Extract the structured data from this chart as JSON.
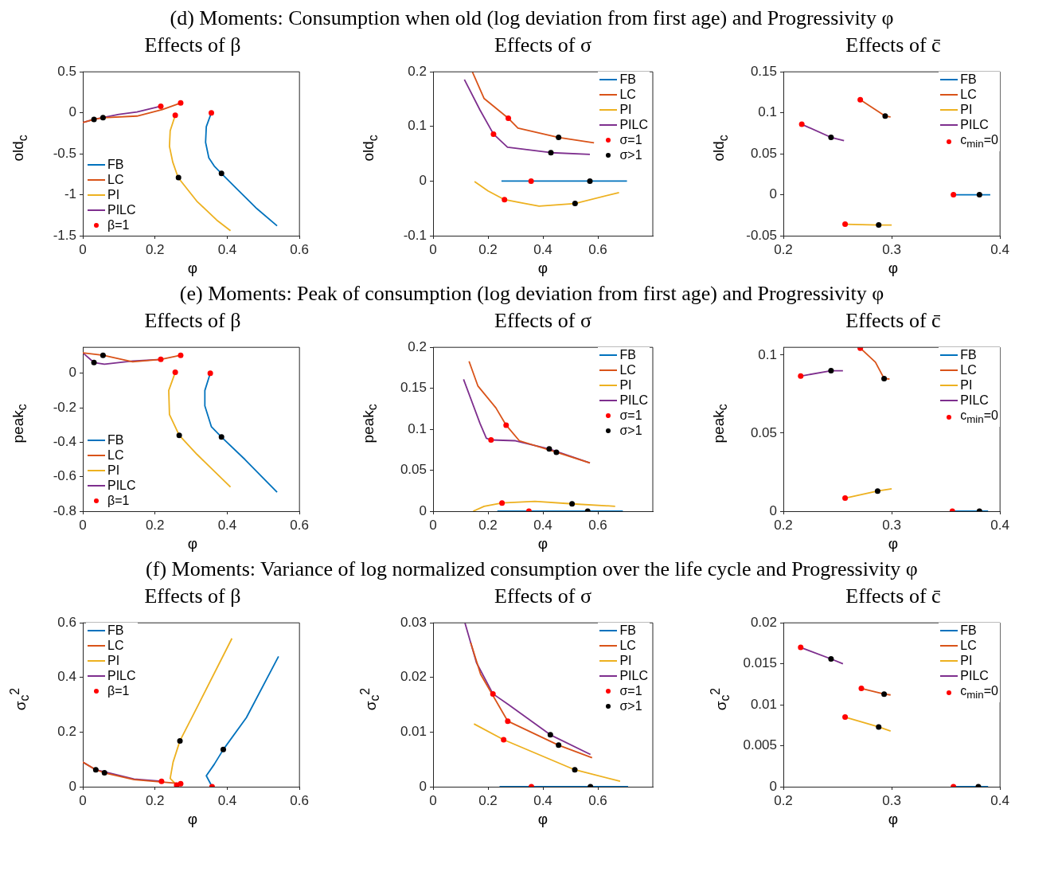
{
  "chart_data": [
    {
      "type": "line",
      "subtitle": "(d) Moments: Consumption when old (log deviation from first age) and Progressivity φ",
      "title": "Effects of β",
      "xlabel": "φ",
      "ylabel": "old$_{c}$",
      "xlim": [
        0,
        0.6
      ],
      "xticks": [
        0,
        0.2,
        0.4,
        0.6
      ],
      "ylim": [
        -1.5,
        0.5
      ],
      "yticks": [
        -1.5,
        -1,
        -0.5,
        0,
        0.5
      ],
      "grid": false,
      "legend": "bottom left",
      "series": [
        {
          "name": "FB",
          "color": "#0072bd",
          "x": [
            0.356,
            0.342,
            0.34,
            0.349,
            0.364,
            0.384,
            0.427,
            0.482,
            0.538
          ],
          "values": [
            0,
            -0.17,
            -0.36,
            -0.55,
            -0.65,
            -0.74,
            -0.93,
            -1.17,
            -1.38
          ]
        },
        {
          "name": "LC",
          "color": "#d95319",
          "x": [
            0,
            0.031,
            0.056,
            0.15,
            0.22,
            0.271
          ],
          "values": [
            -0.12,
            -0.08,
            -0.06,
            -0.04,
            0.04,
            0.12
          ]
        },
        {
          "name": "PI",
          "color": "#edb120",
          "x": [
            0.256,
            0.242,
            0.24,
            0.249,
            0.264,
            0.316,
            0.371,
            0.409
          ],
          "values": [
            -0.03,
            -0.22,
            -0.41,
            -0.6,
            -0.79,
            -1.08,
            -1.31,
            -1.44
          ]
        },
        {
          "name": "PILC",
          "color": "#7e2f8e",
          "x": [
            0,
            0.031,
            0.1,
            0.15,
            0.216
          ],
          "values": [
            -0.12,
            -0.08,
            -0.02,
            0.01,
            0.08
          ]
        },
        {
          "type": "scatter",
          "marker": "circle",
          "name": "β=1",
          "color": "#ff0000",
          "x": [
            0.356,
            0.256,
            0.271,
            0.216
          ],
          "values": [
            0,
            -0.03,
            0.12,
            0.08
          ]
        },
        {
          "type": "scatter",
          "marker": "circle",
          "color": "#000000",
          "x": [
            0.384,
            0.265,
            0.056,
            0.031
          ],
          "values": [
            -0.74,
            -0.79,
            -0.06,
            -0.08
          ]
        }
      ]
    },
    {
      "type": "line",
      "title": "Effects of σ",
      "xlabel": "φ",
      "ylabel": "old$_{c}$",
      "xlim": [
        0,
        0.8
      ],
      "xticks": [
        0,
        0.2,
        0.4,
        0.6
      ],
      "ylim": [
        -0.1,
        0.2
      ],
      "yticks": [
        -0.1,
        0,
        0.1,
        0.2
      ],
      "grid": false,
      "legend": "top right",
      "series": [
        {
          "name": "FB",
          "color": "#0072bd",
          "x": [
            0.249,
            0.706
          ],
          "values": [
            0,
            0
          ]
        },
        {
          "name": "LC",
          "color": "#d95319",
          "x": [
            0.143,
            0.186,
            0.274,
            0.309,
            0.457,
            0.586
          ],
          "values": [
            0.2,
            0.151,
            0.115,
            0.097,
            0.08,
            0.07
          ]
        },
        {
          "name": "PI",
          "color": "#edb120",
          "x": [
            0.151,
            0.2,
            0.26,
            0.386,
            0.517,
            0.677
          ],
          "values": [
            -0.001,
            -0.018,
            -0.034,
            -0.046,
            -0.041,
            -0.021
          ]
        },
        {
          "name": "PILC",
          "color": "#7e2f8e",
          "x": [
            0.114,
            0.171,
            0.22,
            0.271,
            0.429,
            0.571
          ],
          "values": [
            0.186,
            0.13,
            0.086,
            0.062,
            0.052,
            0.049
          ]
        },
        {
          "type": "scatter",
          "marker": "circle",
          "name": "σ=1",
          "color": "#ff0000",
          "x": [
            0.357,
            0.274,
            0.26,
            0.22
          ],
          "values": [
            0,
            0.115,
            -0.034,
            0.086
          ]
        },
        {
          "type": "scatter",
          "marker": "circle",
          "name": "σ>1",
          "color": "#000000",
          "x": [
            0.571,
            0.457,
            0.517,
            0.429
          ],
          "values": [
            0,
            0.08,
            -0.041,
            0.052
          ]
        }
      ]
    },
    {
      "type": "line",
      "title": "Effects of c̄",
      "xlabel": "φ",
      "ylabel": "old$_{c}$",
      "xlim": [
        0.2,
        0.4
      ],
      "xticks": [
        0.2,
        0.3,
        0.4
      ],
      "ylim": [
        -0.05,
        0.15
      ],
      "yticks": [
        -0.05,
        0,
        0.05,
        0.1,
        0.15
      ],
      "grid": false,
      "legend": "top right",
      "series": [
        {
          "name": "FB",
          "color": "#0072bd",
          "x": [
            0.357,
            0.381,
            0.391
          ],
          "values": [
            0,
            0,
            0
          ]
        },
        {
          "name": "LC",
          "color": "#d95319",
          "x": [
            0.271,
            0.294,
            0.299
          ],
          "values": [
            0.116,
            0.096,
            0.095
          ]
        },
        {
          "name": "PI",
          "color": "#edb120",
          "x": [
            0.257,
            0.288,
            0.3
          ],
          "values": [
            -0.036,
            -0.037,
            -0.037
          ]
        },
        {
          "name": "PILC",
          "color": "#7e2f8e",
          "x": [
            0.217,
            0.244,
            0.256
          ],
          "values": [
            0.086,
            0.07,
            0.066
          ]
        },
        {
          "type": "scatter",
          "marker": "circle",
          "name": "c$_{min}$=0",
          "color": "#ff0000",
          "x": [
            0.357,
            0.271,
            0.257,
            0.217
          ],
          "values": [
            0,
            0.116,
            -0.036,
            0.086
          ]
        },
        {
          "type": "scatter",
          "marker": "circle",
          "color": "#000000",
          "x": [
            0.381,
            0.294,
            0.288,
            0.244
          ],
          "values": [
            0,
            0.096,
            -0.037,
            0.07
          ]
        }
      ]
    },
    {
      "type": "line",
      "subtitle": "(e) Moments: Peak of consumption (log deviation from first age) and Progressivity φ",
      "title": "Effects of β",
      "xlabel": "φ",
      "ylabel": "peak$_{c}$",
      "xlim": [
        0,
        0.6
      ],
      "xticks": [
        0,
        0.2,
        0.4,
        0.6
      ],
      "ylim": [
        -0.8,
        0.15
      ],
      "yticks": [
        -0.8,
        -0.6,
        -0.4,
        -0.2,
        0
      ],
      "grid": false,
      "legend": "bottom left",
      "series": [
        {
          "name": "FB",
          "color": "#0072bd",
          "x": [
            0.353,
            0.338,
            0.338,
            0.356,
            0.384,
            0.449,
            0.538
          ],
          "values": [
            0,
            -0.1,
            -0.19,
            -0.31,
            -0.37,
            -0.5,
            -0.69
          ]
        },
        {
          "name": "LC",
          "color": "#d95319",
          "x": [
            0,
            0.056,
            0.138,
            0.216,
            0.271
          ],
          "values": [
            0.118,
            0.104,
            0.066,
            0.08,
            0.104
          ]
        },
        {
          "name": "PI",
          "color": "#edb120",
          "x": [
            0.256,
            0.238,
            0.24,
            0.267,
            0.316,
            0.409
          ],
          "values": [
            0.005,
            -0.1,
            -0.24,
            -0.36,
            -0.47,
            -0.66
          ]
        },
        {
          "name": "PILC",
          "color": "#7e2f8e",
          "x": [
            0,
            0.031,
            0.06,
            0.138,
            0.216
          ],
          "values": [
            0.118,
            0.062,
            0.052,
            0.071,
            0.08
          ]
        },
        {
          "type": "scatter",
          "marker": "circle",
          "name": "β=1",
          "color": "#ff0000",
          "x": [
            0.353,
            0.256,
            0.271,
            0.216
          ],
          "values": [
            0,
            0.005,
            0.104,
            0.08
          ]
        },
        {
          "type": "scatter",
          "marker": "circle",
          "color": "#000000",
          "x": [
            0.384,
            0.267,
            0.056,
            0.031
          ],
          "values": [
            -0.37,
            -0.36,
            0.104,
            0.062
          ]
        }
      ]
    },
    {
      "type": "line",
      "title": "Effects of σ",
      "xlabel": "φ",
      "ylabel": "peak$_{c}$",
      "xlim": [
        0,
        0.8
      ],
      "xticks": [
        0,
        0.2,
        0.4,
        0.6
      ],
      "ylim": [
        0,
        0.2
      ],
      "yticks": [
        0,
        0.05,
        0.1,
        0.15,
        0.2
      ],
      "grid": false,
      "legend": "top right",
      "series": [
        {
          "name": "FB",
          "color": "#0072bd",
          "x": [
            0.234,
            0.691
          ],
          "values": [
            0,
            0
          ]
        },
        {
          "name": "LC",
          "color": "#d95319",
          "x": [
            0.131,
            0.163,
            0.229,
            0.266,
            0.314,
            0.449,
            0.571
          ],
          "values": [
            0.183,
            0.153,
            0.126,
            0.105,
            0.086,
            0.072,
            0.059
          ]
        },
        {
          "name": "PI",
          "color": "#edb120",
          "x": [
            0.146,
            0.186,
            0.251,
            0.371,
            0.506,
            0.663
          ],
          "values": [
            0,
            0.006,
            0.01,
            0.012,
            0.009,
            0.006
          ]
        },
        {
          "name": "PILC",
          "color": "#7e2f8e",
          "x": [
            0.111,
            0.171,
            0.194,
            0.211,
            0.3,
            0.423,
            0.571
          ],
          "values": [
            0.161,
            0.107,
            0.089,
            0.087,
            0.086,
            0.076,
            0.059
          ]
        },
        {
          "type": "scatter",
          "marker": "circle",
          "name": "σ=1",
          "color": "#ff0000",
          "x": [
            0.349,
            0.266,
            0.251,
            0.211
          ],
          "values": [
            0,
            0.105,
            0.01,
            0.087
          ]
        },
        {
          "type": "scatter",
          "marker": "circle",
          "name": "σ>1",
          "color": "#000000",
          "x": [
            0.563,
            0.449,
            0.506,
            0.423
          ],
          "values": [
            0,
            0.072,
            0.009,
            0.076
          ]
        }
      ]
    },
    {
      "type": "line",
      "title": "Effects of c̄",
      "xlabel": "φ",
      "ylabel": "peak$_{c}$",
      "xlim": [
        0.2,
        0.4
      ],
      "xticks": [
        0.2,
        0.3,
        0.4
      ],
      "ylim": [
        0,
        0.105
      ],
      "yticks": [
        0,
        0.05,
        0.1
      ],
      "grid": false,
      "legend": "top right",
      "series": [
        {
          "name": "FB",
          "color": "#0072bd",
          "x": [
            0.356,
            0.381,
            0.389
          ],
          "values": [
            0,
            0,
            0
          ]
        },
        {
          "name": "LC",
          "color": "#d95319",
          "x": [
            0.271,
            0.285,
            0.293,
            0.298
          ],
          "values": [
            0.1045,
            0.0955,
            0.085,
            0.0847
          ]
        },
        {
          "name": "PI",
          "color": "#edb120",
          "x": [
            0.257,
            0.287,
            0.3
          ],
          "values": [
            0.0084,
            0.0129,
            0.0144
          ]
        },
        {
          "name": "PILC",
          "color": "#7e2f8e",
          "x": [
            0.216,
            0.244,
            0.255
          ],
          "values": [
            0.0866,
            0.09,
            0.09
          ]
        },
        {
          "type": "scatter",
          "marker": "circle",
          "name": "c$_{min}$=0",
          "color": "#ff0000",
          "x": [
            0.356,
            0.271,
            0.257,
            0.216
          ],
          "values": [
            0,
            0.1045,
            0.0084,
            0.0866
          ]
        },
        {
          "type": "scatter",
          "marker": "circle",
          "color": "#000000",
          "x": [
            0.381,
            0.293,
            0.287,
            0.244
          ],
          "values": [
            0,
            0.085,
            0.0129,
            0.09
          ]
        }
      ]
    },
    {
      "type": "line",
      "subtitle": "(f) Moments: Variance of log normalized consumption over the life cycle and Progressivity φ",
      "title": "Effects of β",
      "xlabel": "φ",
      "ylabel": "σ$_{c}$$^{2}$",
      "xlim": [
        0,
        0.6
      ],
      "xticks": [
        0,
        0.2,
        0.4,
        0.6
      ],
      "ylim": [
        0,
        0.6
      ],
      "yticks": [
        0,
        0.2,
        0.4,
        0.6
      ],
      "grid": false,
      "legend": "top left",
      "series": [
        {
          "name": "FB",
          "color": "#0072bd",
          "x": [
            0.358,
            0.342,
            0.364,
            0.389,
            0.453,
            0.542
          ],
          "values": [
            0,
            0.04,
            0.082,
            0.136,
            0.253,
            0.477
          ]
        },
        {
          "name": "LC",
          "color": "#d95319",
          "x": [
            0,
            0.036,
            0.06,
            0.142,
            0.22,
            0.271
          ],
          "values": [
            0.09,
            0.062,
            0.051,
            0.026,
            0.017,
            0.011
          ]
        },
        {
          "name": "PI",
          "color": "#edb120",
          "x": [
            0.26,
            0.242,
            0.25,
            0.269,
            0.32,
            0.413
          ],
          "values": [
            0.006,
            0.03,
            0.09,
            0.168,
            0.3,
            0.543
          ]
        },
        {
          "name": "PILC",
          "color": "#7e2f8e",
          "x": [
            0,
            0.036,
            0.142,
            0.218
          ],
          "values": [
            0.09,
            0.062,
            0.028,
            0.02
          ]
        },
        {
          "type": "scatter",
          "marker": "circle",
          "name": "β=1",
          "color": "#ff0000",
          "x": [
            0.358,
            0.26,
            0.271,
            0.218
          ],
          "values": [
            0,
            0.006,
            0.011,
            0.02
          ]
        },
        {
          "type": "scatter",
          "marker": "circle",
          "color": "#000000",
          "x": [
            0.389,
            0.269,
            0.06,
            0.036
          ],
          "values": [
            0.136,
            0.168,
            0.051,
            0.062
          ]
        }
      ]
    },
    {
      "type": "line",
      "title": "Effects of σ",
      "xlabel": "φ",
      "ylabel": "σ$_{c}$$^{2}$",
      "xlim": [
        0,
        0.8
      ],
      "xticks": [
        0,
        0.2,
        0.4,
        0.6
      ],
      "ylim": [
        0,
        0.03
      ],
      "yticks": [
        0,
        0.01,
        0.02,
        0.03
      ],
      "grid": false,
      "legend": "top right",
      "series": [
        {
          "name": "FB",
          "color": "#0072bd",
          "x": [
            0.242,
            0.71
          ],
          "values": [
            0,
            0
          ]
        },
        {
          "name": "LC",
          "color": "#d95319",
          "x": [
            0.137,
            0.173,
            0.272,
            0.457,
            0.579
          ],
          "values": [
            0.0264,
            0.0206,
            0.012,
            0.0076,
            0.0053
          ]
        },
        {
          "name": "PI",
          "color": "#edb120",
          "x": [
            0.149,
            0.257,
            0.516,
            0.681
          ],
          "values": [
            0.0115,
            0.0086,
            0.0031,
            0.001
          ]
        },
        {
          "name": "PILC",
          "color": "#7e2f8e",
          "x": [
            0.116,
            0.158,
            0.218,
            0.275,
            0.427,
            0.573
          ],
          "values": [
            0.03,
            0.0227,
            0.017,
            0.015,
            0.0095,
            0.0059
          ]
        },
        {
          "type": "scatter",
          "marker": "circle",
          "name": "σ=1",
          "color": "#ff0000",
          "x": [
            0.358,
            0.272,
            0.257,
            0.218
          ],
          "values": [
            0,
            0.012,
            0.0086,
            0.017
          ]
        },
        {
          "type": "scatter",
          "marker": "circle",
          "name": "σ>1",
          "color": "#000000",
          "x": [
            0.573,
            0.457,
            0.516,
            0.427
          ],
          "values": [
            0,
            0.0076,
            0.0031,
            0.0095
          ]
        }
      ]
    },
    {
      "type": "line",
      "title": "Effects of c̄",
      "xlabel": "φ",
      "ylabel": "σ$_{c}$$^{2}$",
      "xlim": [
        0.2,
        0.4
      ],
      "xticks": [
        0.2,
        0.3,
        0.4
      ],
      "ylim": [
        0,
        0.02
      ],
      "yticks": [
        0,
        0.005,
        0.01,
        0.015,
        0.02
      ],
      "grid": false,
      "legend": "top right",
      "series": [
        {
          "name": "FB",
          "color": "#0072bd",
          "x": [
            0.357,
            0.38,
            0.389
          ],
          "values": [
            0,
            0,
            0
          ]
        },
        {
          "name": "LC",
          "color": "#d95319",
          "x": [
            0.272,
            0.293,
            0.299
          ],
          "values": [
            0.012,
            0.0113,
            0.0112
          ]
        },
        {
          "name": "PI",
          "color": "#edb120",
          "x": [
            0.257,
            0.288,
            0.299
          ],
          "values": [
            0.0085,
            0.0073,
            0.0068
          ]
        },
        {
          "name": "PILC",
          "color": "#7e2f8e",
          "x": [
            0.216,
            0.244,
            0.255
          ],
          "values": [
            0.017,
            0.0156,
            0.015
          ]
        },
        {
          "type": "scatter",
          "marker": "circle",
          "name": "c$_{min}$=0",
          "color": "#ff0000",
          "x": [
            0.357,
            0.272,
            0.257,
            0.216
          ],
          "values": [
            0,
            0.012,
            0.0085,
            0.017
          ]
        },
        {
          "type": "scatter",
          "marker": "circle",
          "color": "#000000",
          "x": [
            0.38,
            0.293,
            0.288,
            0.244
          ],
          "values": [
            0,
            0.0113,
            0.0073,
            0.0156
          ]
        }
      ]
    }
  ]
}
